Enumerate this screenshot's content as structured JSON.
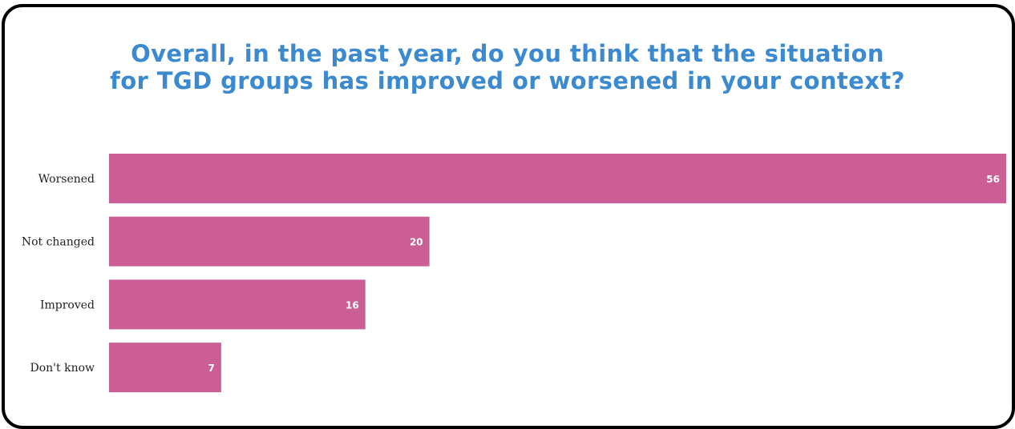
{
  "title_line1": "Overall, in the past year, do you think that the situation",
  "title_line2": "for TGD groups has improved or worsened in your context?",
  "colors": {
    "bar": "#cc5e96",
    "title": "#3b8ad0"
  },
  "chart_data": {
    "type": "bar",
    "orientation": "horizontal",
    "title": "Overall, in the past year, do you think that the situation for TGD groups has improved or worsened in your context?",
    "categories": [
      "Worsened",
      "Not changed",
      "Improved",
      "Don't know"
    ],
    "values": [
      56,
      20,
      16,
      7
    ],
    "data_labels": [
      "56",
      "20",
      "16",
      "7"
    ],
    "xlim": [
      0,
      56
    ],
    "grid": false,
    "legend": "none"
  }
}
